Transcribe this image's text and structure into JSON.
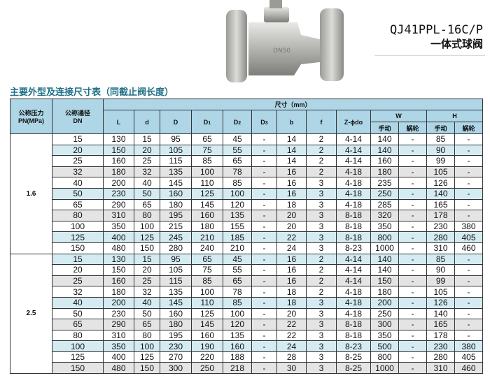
{
  "product": {
    "model": "QJ41PPL-16C/P",
    "name": "一体式球阀",
    "body_marking": "DN50"
  },
  "table_title": "主要外型及连接尺寸表（同截止阀长度）",
  "headers": {
    "pn": "公称压力",
    "pn2": "PN(MPa)",
    "dn": "公称通径",
    "dn2": "DN",
    "dims": "尺寸（mm）",
    "cols": [
      "L",
      "d",
      "D",
      "D1",
      "D2",
      "D3",
      "b",
      "f",
      "Z-ϕdo"
    ],
    "w": "W",
    "h": "H",
    "manual": "手动",
    "worm": "蜗轮"
  },
  "colors": {
    "header": "#aed6e6",
    "row_blue": "#d4ebf1",
    "row_gray": "#e4e4e4",
    "title": "#1e6f86"
  },
  "groups": [
    {
      "pn": "1.6",
      "rows": [
        [
          "15",
          "130",
          "15",
          "95",
          "65",
          "45",
          "-",
          "14",
          "2",
          "4-14",
          "140",
          "-",
          "85",
          "-"
        ],
        [
          "20",
          "150",
          "20",
          "105",
          "75",
          "55",
          "-",
          "14",
          "2",
          "4-14",
          "140",
          "-",
          "90",
          "-"
        ],
        [
          "25",
          "160",
          "25",
          "115",
          "85",
          "65",
          "-",
          "14",
          "2",
          "4-14",
          "160",
          "-",
          "99",
          "-"
        ],
        [
          "32",
          "180",
          "32",
          "135",
          "100",
          "78",
          "-",
          "16",
          "2",
          "4-18",
          "180",
          "-",
          "105",
          "-"
        ],
        [
          "40",
          "200",
          "40",
          "145",
          "110",
          "85",
          "-",
          "16",
          "3",
          "4-18",
          "235",
          "-",
          "126",
          "-"
        ],
        [
          "50",
          "230",
          "50",
          "160",
          "125",
          "100",
          "-",
          "16",
          "3",
          "4-18",
          "250",
          "-",
          "140",
          "-"
        ],
        [
          "65",
          "290",
          "65",
          "180",
          "145",
          "120",
          "-",
          "18",
          "3",
          "4-18",
          "285",
          "-",
          "165",
          "-"
        ],
        [
          "80",
          "310",
          "80",
          "195",
          "160",
          "135",
          "-",
          "20",
          "3",
          "8-18",
          "320",
          "-",
          "178",
          "-"
        ],
        [
          "100",
          "350",
          "100",
          "215",
          "180",
          "155",
          "-",
          "20",
          "3",
          "8-18",
          "350",
          "-",
          "230",
          "380"
        ],
        [
          "125",
          "400",
          "125",
          "245",
          "210",
          "185",
          "-",
          "22",
          "3",
          "8-18",
          "800",
          "-",
          "280",
          "405"
        ],
        [
          "150",
          "480",
          "150",
          "280",
          "240",
          "210",
          "-",
          "24",
          "3",
          "8-23",
          "1000",
          "-",
          "310",
          "460"
        ]
      ],
      "shading": [
        "white",
        "blue",
        "white",
        "gray",
        "white",
        "blue",
        "white",
        "gray",
        "white",
        "blue",
        "white"
      ]
    },
    {
      "pn": "2.5",
      "rows": [
        [
          "15",
          "130",
          "15",
          "95",
          "65",
          "45",
          "-",
          "16",
          "2",
          "4-14",
          "140",
          "-",
          "85",
          "-"
        ],
        [
          "20",
          "150",
          "20",
          "105",
          "75",
          "55",
          "-",
          "16",
          "2",
          "4-14",
          "140",
          "-",
          "90",
          "-"
        ],
        [
          "25",
          "160",
          "25",
          "115",
          "85",
          "65",
          "-",
          "16",
          "2",
          "4-14",
          "150",
          "-",
          "99",
          "-"
        ],
        [
          "32",
          "180",
          "32",
          "135",
          "100",
          "78",
          "-",
          "18",
          "2",
          "4-18",
          "180",
          "-",
          "105",
          "-"
        ],
        [
          "40",
          "200",
          "40",
          "145",
          "110",
          "85",
          "-",
          "18",
          "3",
          "4-18",
          "200",
          "-",
          "126",
          "-"
        ],
        [
          "50",
          "230",
          "50",
          "160",
          "125",
          "100",
          "-",
          "20",
          "3",
          "4-18",
          "250",
          "-",
          "140",
          "-"
        ],
        [
          "65",
          "290",
          "65",
          "180",
          "145",
          "120",
          "-",
          "22",
          "3",
          "8-18",
          "300",
          "-",
          "165",
          "-"
        ],
        [
          "80",
          "310",
          "80",
          "195",
          "160",
          "135",
          "-",
          "22",
          "3",
          "8-18",
          "350",
          "-",
          "178",
          "-"
        ],
        [
          "100",
          "350",
          "100",
          "230",
          "190",
          "160",
          "-",
          "24",
          "3",
          "8-23",
          "500",
          "-",
          "230",
          "380"
        ],
        [
          "125",
          "400",
          "125",
          "270",
          "220",
          "188",
          "-",
          "28",
          "3",
          "8-25",
          "800",
          "-",
          "280",
          "405"
        ],
        [
          "150",
          "480",
          "150",
          "300",
          "250",
          "218",
          "-",
          "30",
          "3",
          "8-25",
          "1000",
          "-",
          "310",
          "460"
        ]
      ],
      "shading": [
        "blue",
        "white",
        "gray",
        "white",
        "blue",
        "white",
        "gray",
        "white",
        "blue",
        "white",
        "gray"
      ]
    }
  ]
}
